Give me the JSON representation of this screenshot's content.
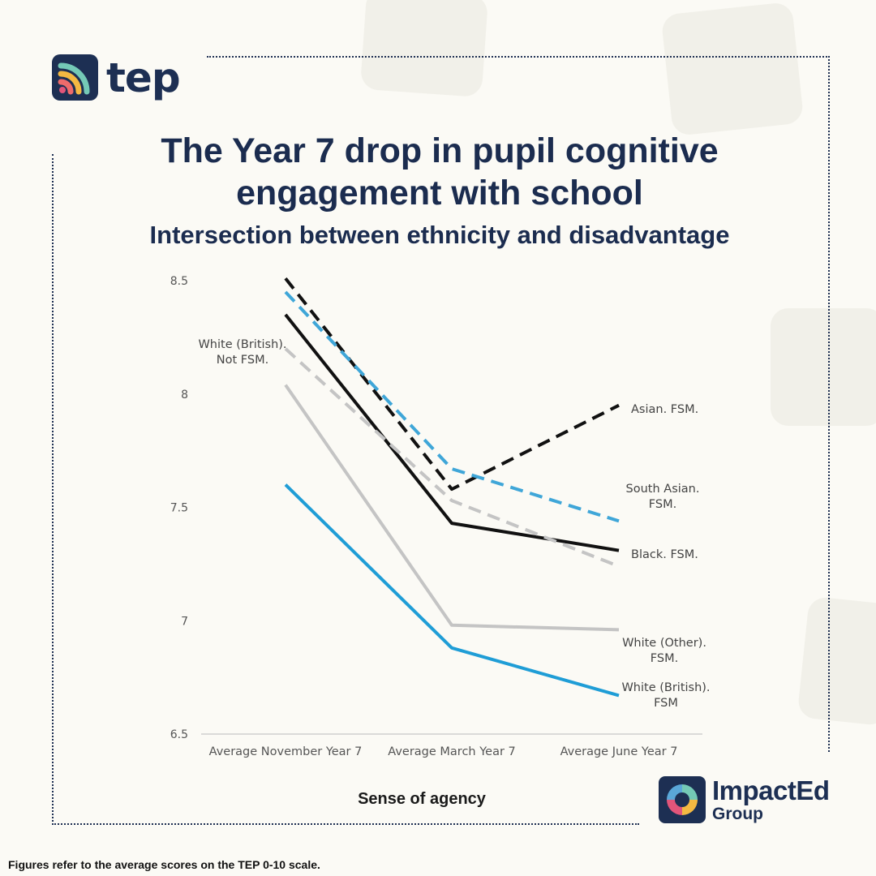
{
  "brand": {
    "tep_name": "tep",
    "impacted_name": "ImpactEd",
    "impacted_sub": "Group",
    "colors": {
      "navy": "#1d2f53",
      "coral": "#ee6b6b",
      "yellow": "#f4b942",
      "teal": "#74c9b6",
      "pink": "#e2557a"
    }
  },
  "footnote": "Figures refer to the average scores on the TEP 0-10 scale.",
  "chart_data": {
    "type": "line",
    "title": "The Year 7 drop in pupil cognitive engagement with school",
    "subtitle": "Intersection between ethnicity and disadvantage",
    "xlabel": "Sense of agency",
    "ylabel": "",
    "categories": [
      "Average November Year 7",
      "Average March Year 7",
      "Average June Year 7"
    ],
    "ylim": [
      6.5,
      8.5
    ],
    "yticks": [
      "8.5",
      "8",
      "7.5",
      "7",
      "6.5"
    ],
    "ytick_values": [
      8.5,
      8,
      7.5,
      7,
      6.5
    ],
    "grid": false,
    "series": [
      {
        "name": "Asian. FSM.",
        "values": [
          8.51,
          7.58,
          7.95
        ],
        "color": "#111111",
        "dashed": true,
        "label": "Asian. FSM."
      },
      {
        "name": "South Asian. FSM.",
        "values": [
          8.45,
          7.67,
          7.44
        ],
        "color": "#3fa6d8",
        "dashed": true,
        "label": "South Asian. FSM."
      },
      {
        "name": "Black. FSM.",
        "values": [
          8.35,
          7.43,
          7.31
        ],
        "color": "#111111",
        "dashed": false,
        "label": "Black. FSM."
      },
      {
        "name": "White (British). Not FSM.",
        "values": [
          8.2,
          7.53,
          7.24
        ],
        "color": "#c4c4c4",
        "dashed": true,
        "label": "White (British). Not FSM."
      },
      {
        "name": "White (Other). FSM.",
        "values": [
          8.04,
          6.98,
          6.96
        ],
        "color": "#c4c4c4",
        "dashed": false,
        "label": "White (Other). FSM."
      },
      {
        "name": "White (British). FSM",
        "values": [
          7.6,
          6.88,
          6.67
        ],
        "color": "#1f9dd6",
        "dashed": false,
        "label": "White (British). FSM"
      }
    ]
  }
}
